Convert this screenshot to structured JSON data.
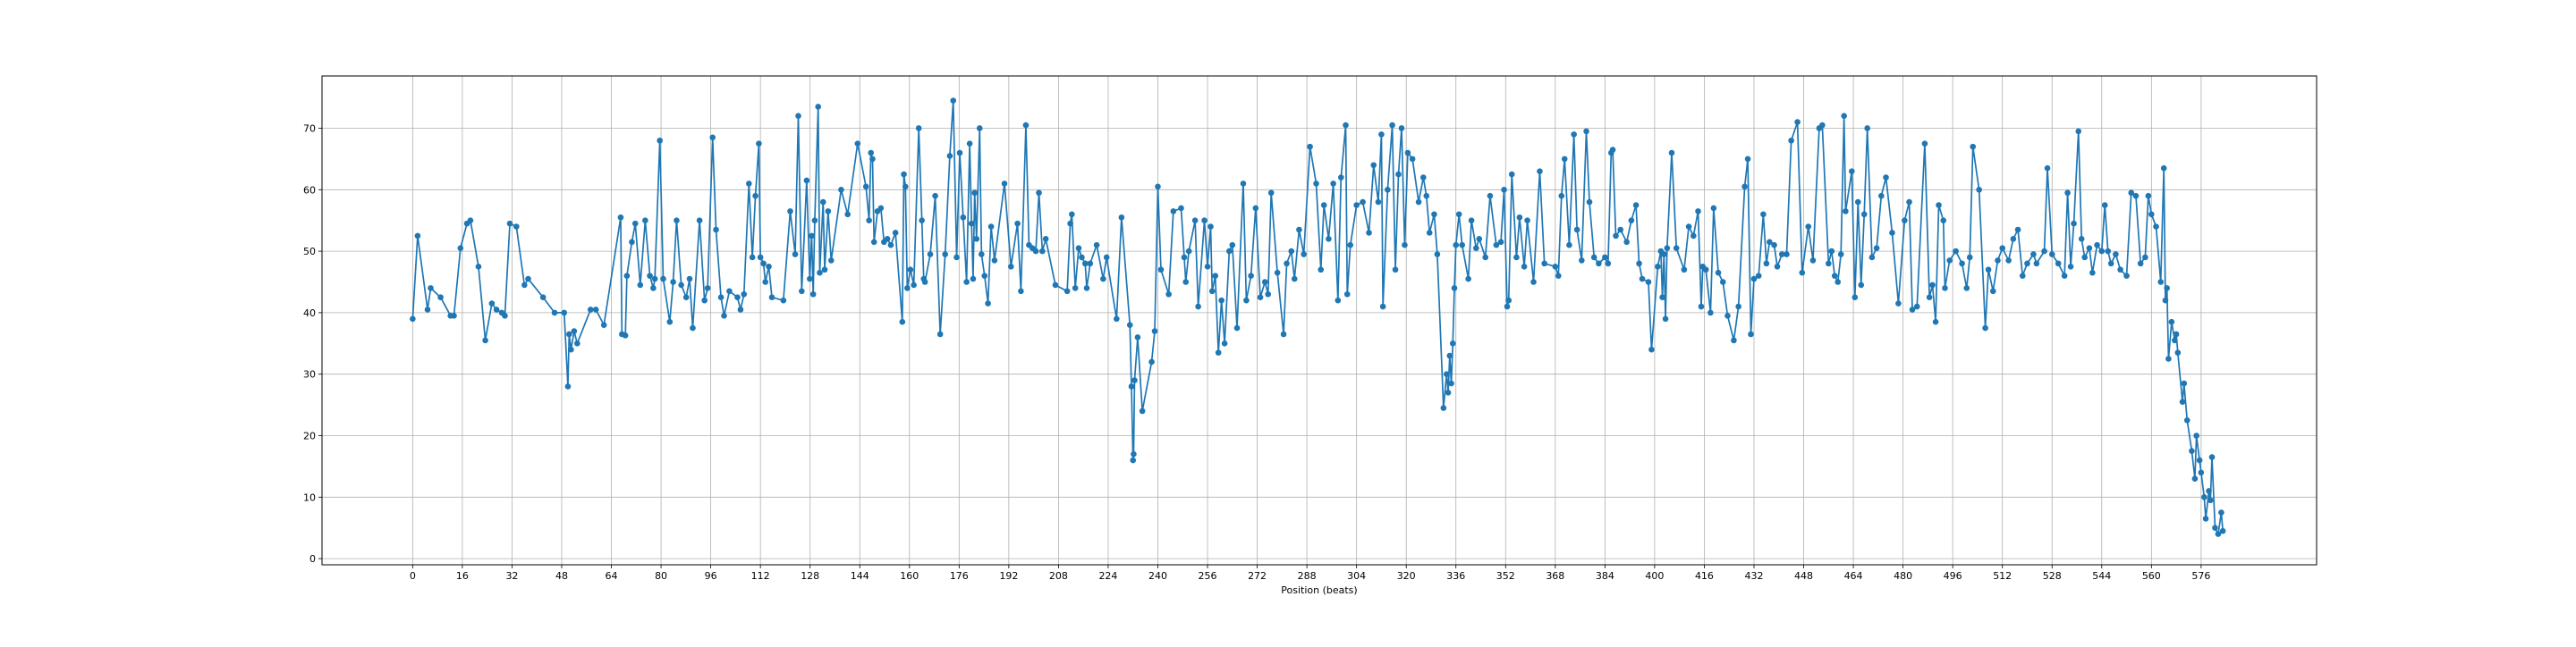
{
  "chart_data": {
    "type": "line",
    "xlabel": "Position (beats)",
    "x": [
      0,
      1.6,
      4.8,
      5.8,
      9,
      12.2,
      13.3,
      15.4,
      17.5,
      18.6,
      21.2,
      23.4,
      25.5,
      27,
      28.7,
      29.7,
      31.3,
      33.4,
      36,
      37.2,
      42,
      45.7,
      48.8,
      50,
      50.4,
      51,
      52,
      53,
      57.3,
      59,
      61.6,
      67,
      67.4,
      68.5,
      69,
      70.6,
      71.7,
      73.3,
      74.9,
      76.4,
      77.5,
      78,
      79.6,
      80.7,
      82.8,
      83.9,
      85,
      86.5,
      88.1,
      89.2,
      90.2,
      92.4,
      94,
      95,
      96.6,
      97.7,
      99.3,
      100.3,
      102,
      104.6,
      105.6,
      106.7,
      108.3,
      109.4,
      110.4,
      111.5,
      112,
      113,
      113.6,
      114.7,
      115.7,
      119.4,
      121.6,
      123.2,
      124.2,
      125.3,
      126.9,
      127.9,
      128.5,
      129,
      129.5,
      130.6,
      131.1,
      132.2,
      132.7,
      133.8,
      134.8,
      138,
      140.1,
      143.3,
      146,
      147,
      147.6,
      148.1,
      148.6,
      149.7,
      150.8,
      151.8,
      152.9,
      154,
      155.5,
      157.7,
      158.2,
      158.7,
      159.3,
      160.3,
      161.4,
      163,
      164,
      164.6,
      165,
      166.7,
      168.3,
      169.9,
      171.5,
      173,
      174.1,
      175.2,
      176.2,
      177.3,
      178.4,
      179.4,
      180,
      180.5,
      181,
      181.6,
      182.6,
      183.2,
      184.2,
      185.3,
      186.3,
      187.4,
      190.6,
      192.7,
      194.8,
      195.9,
      197.5,
      198.5,
      199.6,
      200.7,
      201.7,
      202.8,
      203.9,
      207,
      210.8,
      211.8,
      212.3,
      213.4,
      214.5,
      215.5,
      216.6,
      217.1,
      218.2,
      220.3,
      222.4,
      223.5,
      226.7,
      228.3,
      231,
      231.5,
      232,
      232.2,
      232.5,
      233.5,
      235,
      238,
      239,
      240,
      241,
      243.5,
      245,
      247.5,
      248.5,
      249,
      250,
      252,
      253,
      255,
      256,
      257,
      257.5,
      258.5,
      259.5,
      260.5,
      261.5,
      263,
      264,
      265.5,
      267.5,
      268.5,
      270,
      271.5,
      273,
      274.5,
      275.5,
      276.5,
      278.5,
      280.5,
      281.5,
      283,
      284,
      285.5,
      287,
      289,
      291,
      292.5,
      293.5,
      295,
      296.5,
      298,
      299,
      300.5,
      301,
      302,
      304,
      306,
      308,
      309.5,
      311,
      312,
      312.5,
      314,
      315.5,
      316.5,
      317.5,
      318.5,
      319.5,
      320.5,
      322,
      324,
      325.5,
      326.5,
      327.5,
      329,
      330,
      332,
      333,
      333.5,
      334,
      334.5,
      335,
      335.5,
      336,
      337,
      338,
      340,
      341,
      342.5,
      343.5,
      345.5,
      347,
      349,
      350.5,
      351.5,
      352.5,
      353,
      354,
      355.5,
      356.5,
      358,
      359,
      361,
      363,
      364.5,
      368,
      369,
      370,
      371,
      372.5,
      374,
      375,
      376.5,
      378,
      379,
      380.5,
      382,
      384,
      385,
      386,
      386.5,
      387.5,
      389,
      391,
      392.5,
      394,
      395,
      396,
      398,
      399,
      401,
      402,
      402.5,
      403,
      403.5,
      404,
      405.5,
      407,
      409.5,
      411,
      412.5,
      414,
      415,
      415.5,
      416.5,
      418,
      419,
      420.5,
      422,
      423.5,
      425.5,
      427,
      429,
      430,
      431,
      432,
      433.5,
      435,
      436,
      437,
      438.5,
      439.5,
      441,
      442.5,
      444,
      446,
      447.5,
      449.5,
      451,
      453,
      454,
      456,
      457,
      458,
      459,
      460,
      461,
      461.5,
      463.5,
      464.5,
      465.5,
      466.5,
      467.5,
      468.5,
      470,
      471.5,
      473,
      474.5,
      476.5,
      478.5,
      480.5,
      482,
      483,
      484.5,
      487,
      488.5,
      489.5,
      490.5,
      491.5,
      493,
      493.5,
      495,
      497,
      499,
      500.5,
      501.5,
      502.5,
      504.5,
      506.5,
      507.5,
      509,
      510.5,
      512,
      514,
      515.5,
      517,
      518.5,
      520,
      522,
      523,
      525.5,
      526.5,
      528,
      530,
      532,
      533,
      534,
      535,
      536.5,
      537.5,
      538.5,
      540,
      541,
      542.5,
      544,
      545,
      546,
      547,
      548.5,
      550,
      552,
      553.5,
      555,
      556.5,
      558,
      559,
      560,
      561.5,
      563,
      564,
      564.5,
      565,
      565.5,
      566.5,
      567.5,
      568,
      568.5,
      570,
      570.5,
      571.5,
      573,
      574,
      574.5,
      575.5,
      576,
      577,
      577.5,
      578.5,
      579,
      579.5,
      580.5,
      581.5,
      582.5,
      583
    ],
    "values": [
      39,
      52.5,
      40.5,
      44,
      42.5,
      39.5,
      39.5,
      50.5,
      54.5,
      55,
      47.5,
      35.5,
      41.5,
      40.5,
      40,
      39.5,
      54.5,
      54,
      44.5,
      45.5,
      42.5,
      40,
      40,
      28,
      36.5,
      34,
      37,
      35,
      40.5,
      40.5,
      38,
      55.5,
      36.5,
      36.3,
      46,
      51.5,
      54.5,
      44.5,
      55,
      46,
      44,
      45.5,
      68,
      45.5,
      38.5,
      45,
      55,
      44.5,
      42.5,
      45.5,
      37.5,
      55,
      42,
      44,
      68.5,
      53.5,
      42.5,
      39.5,
      43.5,
      42.5,
      40.5,
      43,
      61,
      49,
      59,
      67.5,
      49,
      48,
      45,
      47.5,
      42.5,
      42,
      56.5,
      49.5,
      72,
      43.5,
      61.5,
      45.5,
      52.5,
      43,
      55,
      73.5,
      46.5,
      58,
      47,
      56.5,
      48.5,
      60,
      56,
      67.5,
      60.5,
      55,
      66,
      65,
      51.5,
      56.5,
      57,
      51.5,
      52,
      51,
      53,
      38.5,
      62.5,
      60.5,
      44,
      47,
      44.5,
      70,
      55,
      45.5,
      45,
      49.5,
      59,
      36.5,
      49.5,
      65.5,
      74.5,
      49,
      66,
      55.5,
      45,
      67.5,
      54.5,
      45.5,
      59.5,
      52,
      70,
      49.5,
      46,
      41.5,
      54,
      48.5,
      61,
      47.5,
      54.5,
      43.5,
      70.5,
      51,
      50.5,
      50,
      59.5,
      50,
      52,
      44.5,
      43.5,
      54.5,
      56,
      44,
      50.5,
      49,
      48,
      44,
      48,
      51,
      45.5,
      49,
      39,
      55.5,
      38,
      28,
      16,
      17,
      29,
      36,
      24,
      32,
      37,
      60.5,
      47,
      43,
      56.5,
      57,
      49,
      45,
      50,
      55,
      41,
      55,
      47.5,
      54,
      43.5,
      46,
      33.5,
      42,
      35,
      50,
      51,
      37.5,
      61,
      42,
      46,
      57,
      42.5,
      45,
      43,
      59.5,
      46.5,
      36.5,
      48,
      50,
      45.5,
      53.5,
      49.5,
      67,
      61,
      47,
      57.5,
      52,
      61,
      42,
      62,
      70.5,
      43,
      51,
      57.5,
      58,
      53,
      64,
      58,
      69,
      41,
      60,
      70.5,
      47,
      62.5,
      70,
      51,
      66,
      65,
      58,
      62,
      59,
      53,
      56,
      49.5,
      24.5,
      30,
      27,
      33,
      28.5,
      35,
      44,
      51,
      56,
      51,
      45.5,
      55,
      50.5,
      52,
      49,
      59,
      51,
      51.5,
      60,
      41,
      42,
      62.5,
      49,
      55.5,
      47.5,
      55,
      45,
      63,
      48,
      47.5,
      46,
      59,
      65,
      51,
      69,
      53.5,
      48.5,
      69.5,
      58,
      49,
      48,
      49,
      48,
      66,
      66.5,
      52.5,
      53.5,
      51.5,
      55,
      57.5,
      48,
      45.5,
      45,
      34,
      47.5,
      50,
      42.5,
      49.5,
      39,
      50.5,
      66,
      50.5,
      47,
      54,
      52.5,
      56.5,
      41,
      47.5,
      47,
      40,
      57,
      46.5,
      45,
      39.5,
      35.5,
      41,
      60.5,
      65,
      36.5,
      45.5,
      46,
      56,
      48,
      51.5,
      51,
      47.5,
      49.5,
      49.5,
      68,
      71,
      46.5,
      54,
      48.5,
      70,
      70.5,
      48,
      50,
      46,
      45,
      49.5,
      72,
      56.5,
      63,
      42.5,
      58,
      44.5,
      56,
      70,
      49,
      50.5,
      59,
      62,
      53,
      41.5,
      55,
      58,
      40.5,
      41,
      67.5,
      42.5,
      44.5,
      38.5,
      57.5,
      55,
      44,
      48.5,
      50,
      48,
      44,
      49,
      67,
      60,
      37.5,
      47,
      43.5,
      48.5,
      50.5,
      48.5,
      52,
      53.5,
      46,
      48,
      49.5,
      48,
      50,
      63.5,
      49.5,
      48,
      46,
      59.5,
      47.5,
      54.5,
      69.5,
      52,
      49,
      50.5,
      46.5,
      51,
      50,
      57.5,
      50,
      48,
      49.5,
      47,
      46,
      59.5,
      59,
      48,
      49,
      59,
      56,
      54,
      45,
      63.5,
      42,
      44,
      32.5,
      38.5,
      35.5,
      36.5,
      33.5,
      25.5,
      28.5,
      22.5,
      17.5,
      13,
      20,
      16,
      14,
      10,
      6.5,
      11,
      9.5,
      16.5,
      5,
      4,
      7.5,
      4.5
    ],
    "color": "#1f77b4",
    "xlim": [
      -29.2,
      613.2
    ],
    "ylim": [
      -1,
      78.5
    ],
    "xticks": [
      0,
      16,
      32,
      48,
      64,
      80,
      96,
      112,
      128,
      144,
      160,
      176,
      192,
      208,
      224,
      240,
      256,
      272,
      288,
      304,
      320,
      336,
      352,
      368,
      384,
      400,
      416,
      432,
      448,
      464,
      480,
      496,
      512,
      528,
      544,
      560,
      576
    ],
    "yticks": [
      0,
      10,
      20,
      30,
      40,
      50,
      60,
      70
    ],
    "grid": true
  }
}
